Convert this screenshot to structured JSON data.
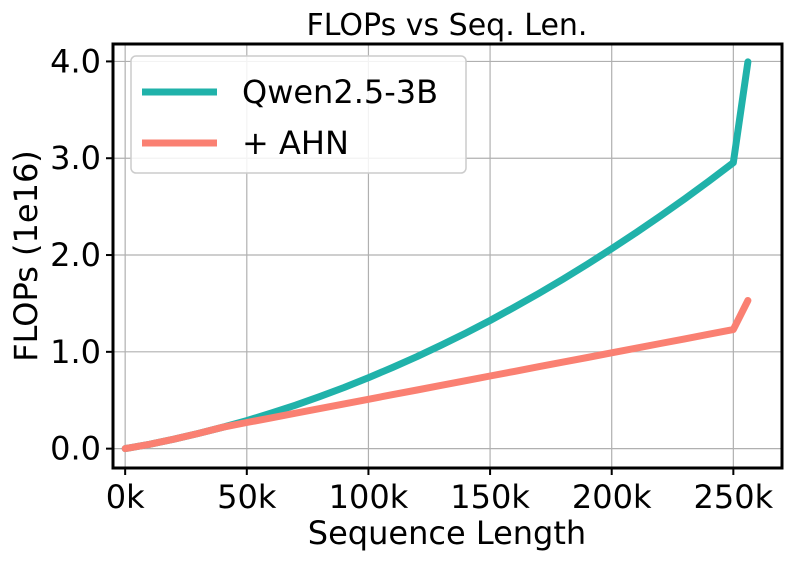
{
  "chart_data": {
    "type": "line",
    "title": "FLOPs vs Seq. Len.",
    "xlabel": "Sequence Length",
    "ylabel": "FLOPs (1e16)",
    "xlim": [
      -5,
      270
    ],
    "ylim": [
      -0.2,
      4.18
    ],
    "grid": true,
    "legend_position": "top-left",
    "x_ticks": [
      {
        "value": 0,
        "label": "0k"
      },
      {
        "value": 50,
        "label": "50k"
      },
      {
        "value": 100,
        "label": "100k"
      },
      {
        "value": 150,
        "label": "150k"
      },
      {
        "value": 200,
        "label": "200k"
      },
      {
        "value": 250,
        "label": "250k"
      }
    ],
    "y_ticks": [
      {
        "value": 0,
        "label": "0.0"
      },
      {
        "value": 1,
        "label": "1.0"
      },
      {
        "value": 2,
        "label": "2.0"
      },
      {
        "value": 3,
        "label": "3.0"
      },
      {
        "value": 4,
        "label": "4.0"
      }
    ],
    "series": [
      {
        "name": "Qwen2.5-3B",
        "color": "#20b2aa",
        "x": [
          0,
          10,
          20,
          30,
          40,
          50,
          60,
          70,
          80,
          90,
          100,
          110,
          120,
          130,
          140,
          150,
          160,
          170,
          180,
          190,
          200,
          210,
          220,
          230,
          240,
          250,
          256
        ],
        "y": [
          0,
          0.045,
          0.098,
          0.156,
          0.22,
          0.29,
          0.367,
          0.449,
          0.538,
          0.632,
          0.733,
          0.839,
          0.951,
          1.07,
          1.194,
          1.324,
          1.461,
          1.603,
          1.751,
          1.905,
          2.065,
          2.231,
          2.403,
          2.58,
          2.764,
          2.954,
          3.995
        ]
      },
      {
        "name": "+ AHN",
        "color": "#fa8072",
        "x": [
          0,
          10,
          20,
          30,
          40,
          50,
          60,
          70,
          80,
          90,
          100,
          110,
          120,
          130,
          140,
          150,
          160,
          170,
          180,
          190,
          200,
          210,
          220,
          230,
          240,
          250,
          256
        ],
        "y": [
          0,
          0.045,
          0.098,
          0.156,
          0.22,
          0.27,
          0.318,
          0.366,
          0.414,
          0.462,
          0.51,
          0.558,
          0.606,
          0.654,
          0.702,
          0.75,
          0.798,
          0.846,
          0.894,
          0.942,
          0.99,
          1.038,
          1.086,
          1.134,
          1.182,
          1.23,
          1.53
        ]
      }
    ]
  }
}
